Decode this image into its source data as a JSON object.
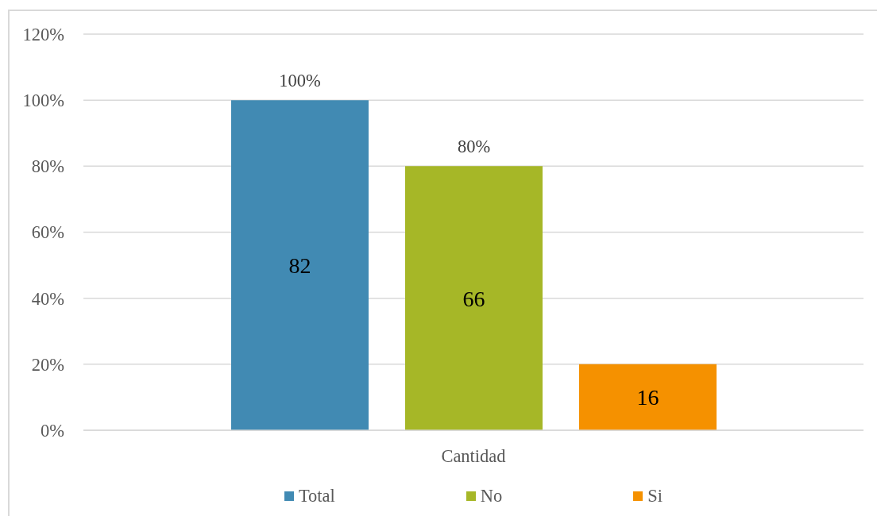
{
  "chart_data": {
    "type": "bar",
    "categories": [
      "Cantidad"
    ],
    "series": [
      {
        "name": "Total",
        "color": "#418ab3",
        "values": [
          100
        ],
        "value_labels": [
          "100%"
        ]
      },
      {
        "name": "No",
        "color": "#a6b727",
        "values": [
          80
        ],
        "value_labels": [
          "80%"
        ]
      },
      {
        "name": "Si",
        "color": "#f59100",
        "values": [
          20
        ],
        "value_labels": [
          null
        ]
      }
    ],
    "ylim": [
      0,
      120
    ],
    "yticks": [
      {
        "value": 0,
        "label": "0%"
      },
      {
        "value": 20,
        "label": "20%"
      },
      {
        "value": 40,
        "label": "40%"
      },
      {
        "value": 60,
        "label": "60%"
      },
      {
        "value": 80,
        "label": "80%"
      },
      {
        "value": 100,
        "label": "100%"
      },
      {
        "value": 120,
        "label": "120%"
      }
    ],
    "grid": "y",
    "legend": "bottom",
    "annotations": [
      "82",
      "66",
      "16"
    ]
  }
}
